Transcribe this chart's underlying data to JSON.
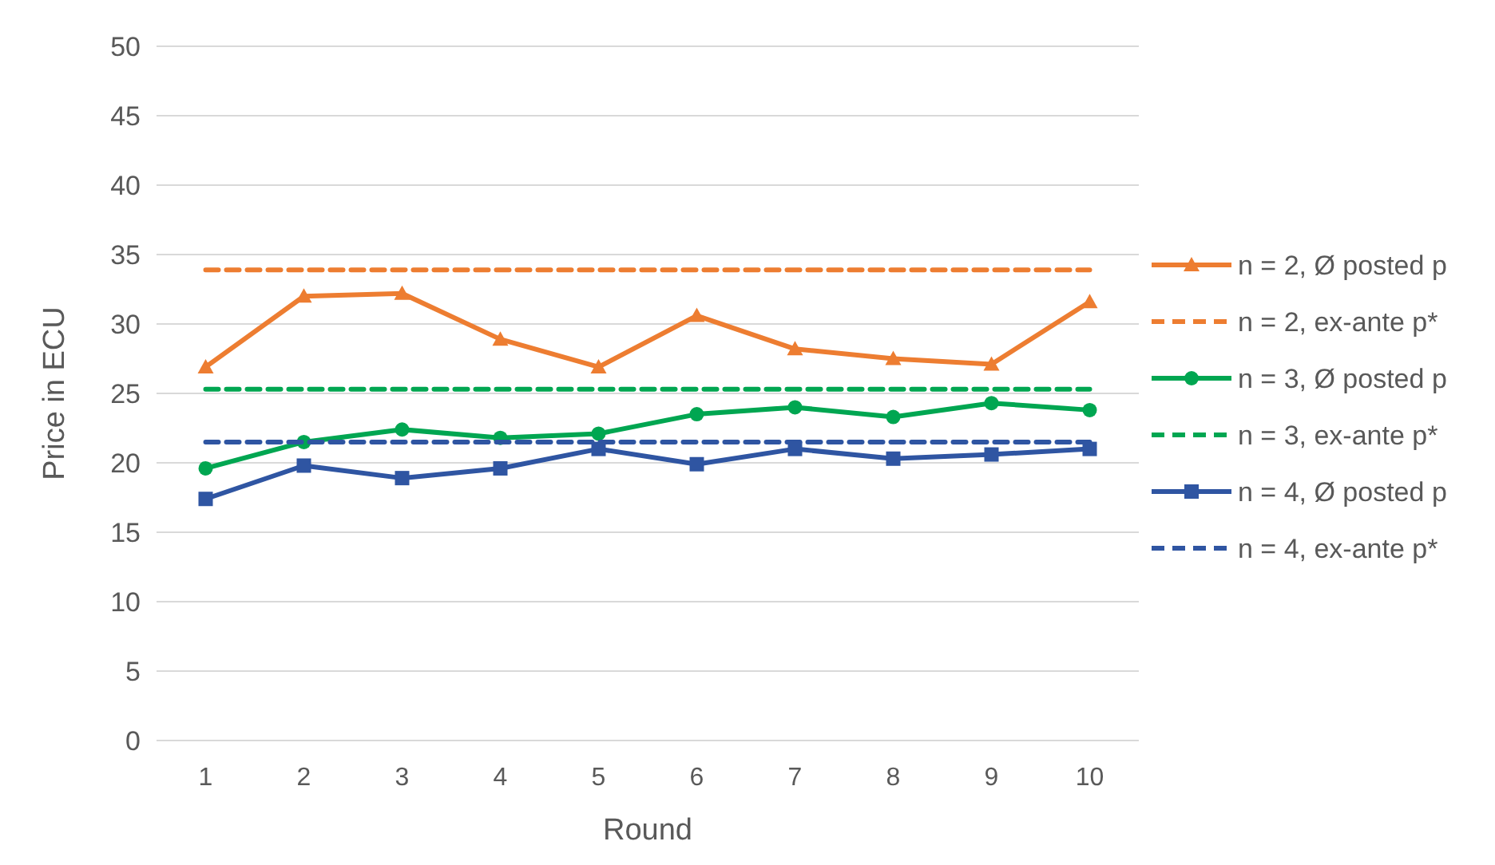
{
  "chart_data": {
    "type": "line",
    "xlabel": "Round",
    "ylabel": "Price in ECU",
    "categories": [
      "1",
      "2",
      "3",
      "4",
      "5",
      "6",
      "7",
      "8",
      "9",
      "10"
    ],
    "ylim": [
      0,
      50
    ],
    "yticks": [
      0,
      5,
      10,
      15,
      20,
      25,
      30,
      35,
      40,
      45,
      50
    ],
    "grid": "y",
    "legend": "right",
    "series": [
      {
        "name": "n = 2, Ø posted p",
        "color": "#ed7d31",
        "marker": "triangle",
        "line_style": "solid",
        "values": [
          26.9,
          32.0,
          32.2,
          28.9,
          26.9,
          30.6,
          28.2,
          27.5,
          27.1,
          31.6
        ]
      },
      {
        "name": "n = 2, ex-ante p*",
        "color": "#ed7d31",
        "marker": "none",
        "line_style": "dashed",
        "values": [
          33.9,
          33.9,
          33.9,
          33.9,
          33.9,
          33.9,
          33.9,
          33.9,
          33.9,
          33.9
        ]
      },
      {
        "name": "n = 3, Ø posted p",
        "color": "#00a651",
        "marker": "circle",
        "line_style": "solid",
        "values": [
          19.6,
          21.5,
          22.4,
          21.8,
          22.1,
          23.5,
          24.0,
          23.3,
          24.3,
          23.8
        ]
      },
      {
        "name": "n = 3, ex-ante p*",
        "color": "#00a651",
        "marker": "none",
        "line_style": "dashed",
        "values": [
          25.3,
          25.3,
          25.3,
          25.3,
          25.3,
          25.3,
          25.3,
          25.3,
          25.3,
          25.3
        ]
      },
      {
        "name": "n = 4, Ø posted p",
        "color": "#2f55a2",
        "marker": "square",
        "line_style": "solid",
        "values": [
          17.4,
          19.8,
          18.9,
          19.6,
          21.0,
          19.9,
          21.0,
          20.3,
          20.6,
          21.0
        ]
      },
      {
        "name": "n = 4, ex-ante p*",
        "color": "#2f55a2",
        "marker": "none",
        "line_style": "dashed",
        "values": [
          21.5,
          21.5,
          21.5,
          21.5,
          21.5,
          21.5,
          21.5,
          21.5,
          21.5,
          21.5
        ]
      }
    ]
  }
}
